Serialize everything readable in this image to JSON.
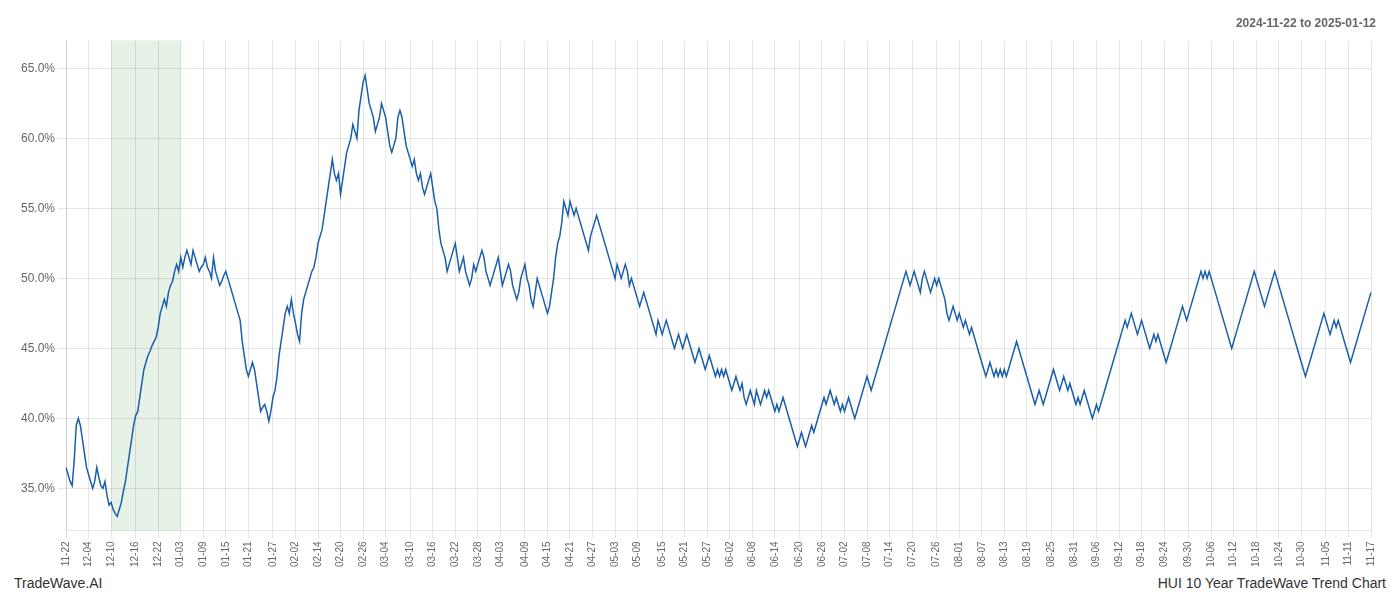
{
  "chart_data": {
    "type": "line",
    "title": "2024-11-22 to 2025-01-12",
    "annotations": [
      "TradeWave.AI",
      "HUI 10 Year TradeWave Trend Chart"
    ],
    "color": "#1a5fa8",
    "grid": true,
    "ylim": [
      32.0,
      67.0
    ],
    "yticks": [
      {
        "value": 35.0,
        "label": "35.0%"
      },
      {
        "value": 40.0,
        "label": "40.0%"
      },
      {
        "value": 45.0,
        "label": "45.0%"
      },
      {
        "value": 50.0,
        "label": "50.0%"
      },
      {
        "value": 55.0,
        "label": "55.0%"
      },
      {
        "value": 60.0,
        "label": "60.0%"
      },
      {
        "value": 65.0,
        "label": "65.0%"
      }
    ],
    "shaded_span": {
      "from": "12-10",
      "to": "01-03",
      "color": "#d6ead6"
    },
    "categories": [
      "11-22",
      null,
      null,
      null,
      null,
      null,
      null,
      null,
      null,
      null,
      null,
      "12-04",
      null,
      null,
      null,
      null,
      null,
      null,
      null,
      null,
      null,
      null,
      "12-10",
      null,
      null,
      null,
      null,
      null,
      null,
      null,
      null,
      null,
      null,
      null,
      "12-16",
      null,
      null,
      null,
      null,
      null,
      null,
      null,
      null,
      null,
      null,
      "12-22",
      null,
      null,
      null,
      null,
      null,
      null,
      null,
      null,
      null,
      null,
      "01-03",
      null,
      null,
      null,
      null,
      null,
      null,
      null,
      null,
      null,
      null,
      "01-09",
      null,
      null,
      null,
      null,
      null,
      null,
      null,
      null,
      null,
      null,
      "01-15",
      null,
      null,
      null,
      null,
      null,
      null,
      null,
      null,
      null,
      null,
      "01-21",
      null,
      null,
      null,
      null,
      null,
      null,
      null,
      null,
      null,
      null,
      null,
      "01-27",
      null,
      null,
      null,
      null,
      null,
      null,
      null,
      null,
      null,
      null,
      "02-02",
      null,
      null,
      null,
      null,
      null,
      null,
      null,
      null,
      null,
      null,
      "02-14",
      null,
      null,
      null,
      null,
      null,
      null,
      null,
      null,
      null,
      null,
      "02-20",
      null,
      null,
      null,
      null,
      null,
      null,
      null,
      null,
      null,
      null,
      "02-26",
      null,
      null,
      null,
      null,
      null,
      null,
      null,
      null,
      null,
      null,
      "03-04",
      null,
      null,
      null,
      null,
      null,
      null,
      null,
      null,
      null,
      null,
      null,
      "03-10",
      null,
      null,
      null,
      null,
      null,
      null,
      null,
      null,
      null,
      null,
      "03-16",
      null,
      null,
      null,
      null,
      null,
      null,
      null,
      null,
      null,
      null,
      "03-22",
      null,
      null,
      null,
      null,
      null,
      null,
      null,
      null,
      null,
      null,
      "03-28",
      null,
      null,
      null,
      null,
      null,
      null,
      null,
      null,
      null,
      null,
      "04-03",
      null,
      null,
      null,
      null,
      null,
      null,
      null,
      null,
      null,
      null,
      null,
      "04-09",
      null,
      null,
      null,
      null,
      null,
      null,
      null,
      null,
      null,
      null,
      "04-15",
      null,
      null,
      null,
      null,
      null,
      null,
      null,
      null,
      null,
      null,
      "04-21",
      null,
      null,
      null,
      null,
      null,
      null,
      null,
      null,
      null,
      null,
      "04-27",
      null,
      null,
      null,
      null,
      null,
      null,
      null,
      null,
      null,
      null,
      "05-03",
      null,
      null,
      null,
      null,
      null,
      null,
      null,
      null,
      null,
      null,
      "05-09",
      null,
      null,
      null,
      null,
      null,
      null,
      null,
      null,
      null,
      null,
      null,
      "05-15",
      null,
      null,
      null,
      null,
      null,
      null,
      null,
      null,
      null,
      null,
      "05-21",
      null,
      null,
      null,
      null,
      null,
      null,
      null,
      null,
      null,
      null,
      "05-27",
      null,
      null,
      null,
      null,
      null,
      null,
      null,
      null,
      null,
      null,
      "06-02",
      null,
      null,
      null,
      null,
      null,
      null,
      null,
      null,
      null,
      null,
      "06-08",
      null,
      null,
      null,
      null,
      null,
      null,
      null,
      null,
      null,
      null,
      "06-14",
      null,
      null,
      null,
      null,
      null,
      null,
      null,
      null,
      null,
      null,
      null,
      "06-20",
      null,
      null,
      null,
      null,
      null,
      null,
      null,
      null,
      null,
      null,
      "06-26",
      null,
      null,
      null,
      null,
      null,
      null,
      null,
      null,
      null,
      null,
      "07-02",
      null,
      null,
      null,
      null,
      null,
      null,
      null,
      null,
      null,
      null,
      "07-08",
      null,
      null,
      null,
      null,
      null,
      null,
      null,
      null,
      null,
      null,
      "07-14",
      null,
      null,
      null,
      null,
      null,
      null,
      null,
      null,
      null,
      null,
      "07-20",
      null,
      null,
      null,
      null,
      null,
      null,
      null,
      null,
      null,
      null,
      null,
      "07-26",
      null,
      null,
      null,
      null,
      null,
      null,
      null,
      null,
      null,
      null,
      "08-01",
      null,
      null,
      null,
      null,
      null,
      null,
      null,
      null,
      null,
      null,
      "08-07",
      null,
      null,
      null,
      null,
      null,
      null,
      null,
      null,
      null,
      null,
      "08-13",
      null,
      null,
      null,
      null,
      null,
      null,
      null,
      null,
      null,
      null,
      "08-19",
      null,
      null,
      null,
      null,
      null,
      null,
      null,
      null,
      null,
      null,
      null,
      "08-25",
      null,
      null,
      null,
      null,
      null,
      null,
      null,
      null,
      null,
      null,
      "08-31",
      null,
      null,
      null,
      null,
      null,
      null,
      null,
      null,
      null,
      null,
      "09-06",
      null,
      null,
      null,
      null,
      null,
      null,
      null,
      null,
      null,
      null,
      "09-12",
      null,
      null,
      null,
      null,
      null,
      null,
      null,
      null,
      null,
      null,
      "09-18",
      null,
      null,
      null,
      null,
      null,
      null,
      null,
      null,
      null,
      null,
      "09-24",
      null,
      null,
      null,
      null,
      null,
      null,
      null,
      null,
      null,
      null,
      null,
      "09-30",
      null,
      null,
      null,
      null,
      null,
      null,
      null,
      null,
      null,
      null,
      "10-06",
      null,
      null,
      null,
      null,
      null,
      null,
      null,
      null,
      null,
      null,
      "10-12",
      null,
      null,
      null,
      null,
      null,
      null,
      null,
      null,
      null,
      null,
      "10-18",
      null,
      null,
      null,
      null,
      null,
      null,
      null,
      null,
      null,
      null,
      "10-24",
      null,
      null,
      null,
      null,
      null,
      null,
      null,
      null,
      null,
      null,
      "10-30",
      null,
      null,
      null,
      null,
      null,
      null,
      null,
      null,
      null,
      null,
      null,
      "11-05",
      null,
      null,
      null,
      null,
      null,
      null,
      null,
      null,
      null,
      null,
      "11-11",
      null,
      null,
      null,
      null,
      null,
      null,
      null,
      null,
      null,
      null,
      "11-17"
    ],
    "values": [
      36.5,
      36.0,
      35.5,
      35.2,
      37.0,
      39.5,
      40.0,
      39.5,
      38.5,
      37.5,
      36.5,
      36.0,
      35.5,
      35.0,
      35.5,
      36.5,
      35.8,
      35.2,
      35.0,
      35.5,
      34.5,
      33.8,
      34.0,
      33.5,
      33.2,
      33.0,
      33.5,
      34.0,
      34.8,
      35.5,
      36.5,
      37.5,
      38.5,
      39.5,
      40.2,
      40.5,
      41.5,
      42.5,
      43.5,
      44.0,
      44.5,
      44.8,
      45.2,
      45.5,
      45.8,
      46.5,
      47.5,
      48.0,
      48.5,
      48.0,
      49.0,
      49.5,
      49.8,
      50.5,
      51.0,
      50.5,
      51.5,
      50.8,
      51.5,
      52.0,
      51.5,
      51.0,
      52.0,
      51.5,
      51.0,
      50.5,
      50.8,
      51.0,
      51.5,
      50.8,
      50.5,
      50.0,
      51.5,
      50.5,
      50.0,
      49.5,
      49.8,
      50.2,
      50.5,
      50.0,
      49.5,
      49.0,
      48.5,
      48.0,
      47.5,
      47.0,
      45.5,
      44.5,
      43.5,
      43.0,
      43.5,
      44.0,
      43.5,
      42.5,
      41.5,
      40.5,
      40.8,
      41.0,
      40.5,
      39.8,
      40.5,
      41.5,
      42.0,
      43.0,
      44.5,
      45.5,
      46.5,
      47.5,
      48.0,
      47.5,
      48.5,
      47.5,
      46.8,
      46.0,
      45.5,
      47.5,
      48.5,
      49.0,
      49.5,
      50.0,
      50.5,
      50.8,
      51.5,
      52.5,
      53.0,
      53.5,
      54.5,
      55.5,
      56.5,
      57.5,
      58.5,
      57.5,
      57.0,
      57.5,
      56.0,
      57.0,
      58.0,
      59.0,
      59.5,
      60.0,
      61.0,
      60.5,
      60.0,
      62.0,
      63.0,
      64.0,
      64.5,
      63.5,
      62.5,
      62.0,
      61.5,
      60.5,
      61.0,
      61.5,
      62.5,
      62.0,
      61.5,
      60.5,
      59.5,
      59.0,
      59.5,
      60.0,
      61.5,
      62.0,
      61.5,
      60.5,
      59.5,
      59.0,
      58.5,
      58.0,
      58.5,
      57.5,
      57.0,
      57.5,
      56.5,
      56.0,
      56.5,
      57.0,
      57.5,
      56.5,
      55.5,
      55.0,
      53.5,
      52.5,
      52.0,
      51.5,
      50.5,
      51.0,
      51.5,
      52.0,
      52.5,
      51.5,
      50.5,
      51.0,
      51.5,
      50.5,
      50.0,
      49.5,
      50.0,
      51.0,
      50.5,
      51.0,
      51.5,
      52.0,
      51.5,
      50.5,
      50.0,
      49.5,
      50.0,
      50.5,
      51.0,
      51.5,
      50.5,
      49.5,
      50.0,
      50.5,
      51.0,
      50.5,
      49.5,
      49.0,
      48.5,
      49.0,
      50.0,
      50.5,
      51.0,
      50.0,
      49.5,
      48.5,
      48.0,
      49.0,
      50.0,
      49.5,
      49.0,
      48.5,
      48.0,
      47.5,
      48.0,
      49.0,
      50.0,
      51.5,
      52.5,
      53.0,
      54.0,
      55.5,
      55.0,
      54.5,
      55.5,
      55.0,
      54.5,
      55.0,
      54.5,
      54.0,
      53.5,
      53.0,
      52.5,
      52.0,
      53.0,
      53.5,
      54.0,
      54.5,
      54.0,
      53.5,
      53.0,
      52.5,
      52.0,
      51.5,
      51.0,
      50.5,
      50.0,
      51.0,
      50.5,
      50.0,
      50.5,
      51.0,
      50.5,
      49.5,
      50.0,
      49.5,
      49.0,
      48.5,
      48.0,
      48.5,
      49.0,
      48.5,
      48.0,
      47.5,
      47.0,
      46.5,
      46.0,
      47.0,
      46.5,
      46.0,
      46.5,
      47.0,
      46.5,
      46.0,
      45.5,
      45.0,
      45.5,
      46.0,
      45.5,
      45.0,
      45.5,
      46.0,
      45.5,
      45.0,
      44.5,
      44.0,
      44.5,
      45.0,
      44.5,
      44.0,
      43.5,
      44.0,
      44.5,
      44.0,
      43.5,
      43.0,
      43.5,
      43.0,
      43.5,
      43.0,
      43.5,
      43.0,
      42.5,
      42.0,
      42.5,
      43.0,
      42.5,
      42.0,
      42.5,
      41.5,
      41.0,
      41.5,
      42.0,
      41.5,
      41.0,
      42.0,
      41.5,
      41.0,
      41.5,
      42.0,
      41.5,
      42.0,
      41.5,
      41.0,
      40.5,
      41.0,
      40.5,
      41.0,
      41.5,
      41.0,
      40.5,
      40.0,
      39.5,
      39.0,
      38.5,
      38.0,
      38.5,
      39.0,
      38.5,
      38.0,
      38.5,
      39.0,
      39.5,
      39.0,
      39.5,
      40.0,
      40.5,
      41.0,
      41.5,
      41.0,
      41.5,
      42.0,
      41.5,
      41.0,
      41.5,
      41.0,
      40.5,
      41.0,
      40.5,
      41.0,
      41.5,
      41.0,
      40.5,
      40.0,
      40.5,
      41.0,
      41.5,
      42.0,
      42.5,
      43.0,
      42.5,
      42.0,
      42.5,
      43.0,
      43.5,
      44.0,
      44.5,
      45.0,
      45.5,
      46.0,
      46.5,
      47.0,
      47.5,
      48.0,
      48.5,
      49.0,
      49.5,
      50.0,
      50.5,
      50.0,
      49.5,
      50.0,
      50.5,
      50.0,
      49.5,
      49.0,
      50.0,
      50.5,
      50.0,
      49.5,
      49.0,
      49.5,
      50.0,
      49.5,
      50.0,
      49.5,
      49.0,
      48.5,
      47.5,
      47.0,
      47.5,
      48.0,
      47.5,
      47.0,
      47.5,
      47.0,
      46.5,
      47.0,
      46.5,
      46.0,
      46.5,
      46.0,
      45.5,
      45.0,
      44.5,
      44.0,
      43.5,
      43.0,
      43.5,
      44.0,
      43.5,
      43.0,
      43.5,
      43.0,
      43.5,
      43.0,
      43.5,
      43.0,
      43.5,
      44.0,
      44.5,
      45.0,
      45.5,
      45.0,
      44.5,
      44.0,
      43.5,
      43.0,
      42.5,
      42.0,
      41.5,
      41.0,
      41.5,
      42.0,
      41.5,
      41.0,
      41.5,
      42.0,
      42.5,
      43.0,
      43.5,
      43.0,
      42.5,
      42.0,
      42.5,
      43.0,
      42.5,
      42.0,
      42.5,
      42.0,
      41.5,
      41.0,
      41.5,
      41.0,
      41.5,
      42.0,
      41.5,
      41.0,
      40.5,
      40.0,
      40.5,
      41.0,
      40.5,
      41.0,
      41.5,
      42.0,
      42.5,
      43.0,
      43.5,
      44.0,
      44.5,
      45.0,
      45.5,
      46.0,
      46.5,
      47.0,
      46.5,
      47.0,
      47.5,
      47.0,
      46.5,
      46.0,
      46.5,
      47.0,
      46.5,
      46.0,
      45.5,
      45.0,
      45.5,
      46.0,
      45.5,
      46.0,
      45.5,
      45.0,
      44.5,
      44.0,
      44.5,
      45.0,
      45.5,
      46.0,
      46.5,
      47.0,
      47.5,
      48.0,
      47.5,
      47.0,
      47.5,
      48.0,
      48.5,
      49.0,
      49.5,
      50.0,
      50.5,
      50.0,
      50.5,
      50.0,
      50.5,
      50.0,
      49.5,
      49.0,
      48.5,
      48.0,
      47.5,
      47.0,
      46.5,
      46.0,
      45.5,
      45.0,
      45.5,
      46.0,
      46.5,
      47.0,
      47.5,
      48.0,
      48.5,
      49.0,
      49.5,
      50.0,
      50.5,
      50.0,
      49.5,
      49.0,
      48.5,
      48.0,
      48.5,
      49.0,
      49.5,
      50.0,
      50.5,
      50.0,
      49.5,
      49.0,
      48.5,
      48.0,
      47.5,
      47.0,
      46.5,
      46.0,
      45.5,
      45.0,
      44.5,
      44.0,
      43.5,
      43.0,
      43.5,
      44.0,
      44.5,
      45.0,
      45.5,
      46.0,
      46.5,
      47.0,
      47.5,
      47.0,
      46.5,
      46.0,
      46.5,
      47.0,
      46.5,
      47.0,
      46.5,
      46.0,
      45.5,
      45.0,
      44.5,
      44.0,
      44.5,
      45.0,
      45.5,
      46.0,
      46.5,
      47.0,
      47.5,
      48.0,
      48.5,
      49.0
    ]
  }
}
